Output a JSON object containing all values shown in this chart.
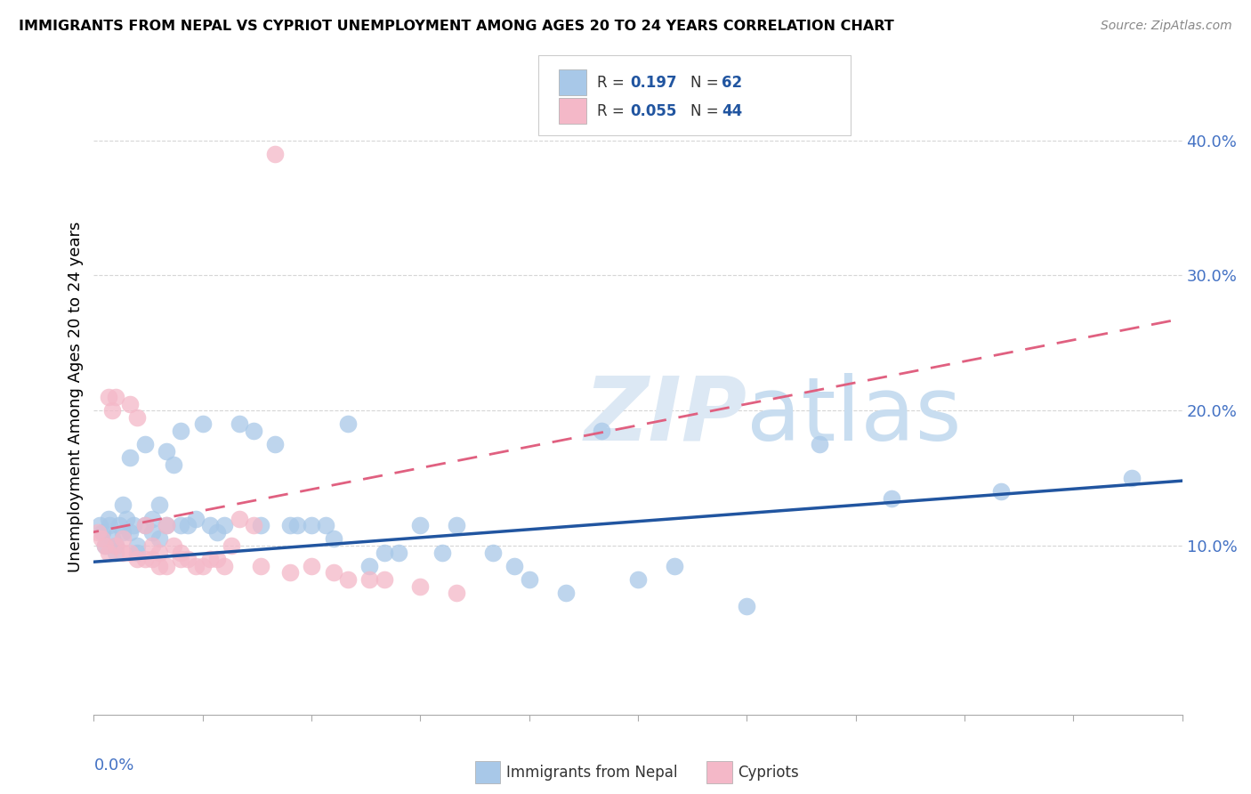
{
  "title": "IMMIGRANTS FROM NEPAL VS CYPRIOT UNEMPLOYMENT AMONG AGES 20 TO 24 YEARS CORRELATION CHART",
  "source": "Source: ZipAtlas.com",
  "ylabel": "Unemployment Among Ages 20 to 24 years",
  "color_blue": "#a8c8e8",
  "color_pink": "#f4b8c8",
  "color_blue_line": "#2155a0",
  "color_pink_line": "#e06080",
  "color_grid": "#cccccc",
  "xlim": [
    0.0,
    0.15
  ],
  "ylim": [
    -0.025,
    0.445
  ],
  "yticks": [
    0.1,
    0.2,
    0.3,
    0.4
  ],
  "ytick_labels": [
    "10.0%",
    "20.0%",
    "30.0%",
    "40.0%"
  ],
  "nepal_trend": [
    0.0,
    0.15,
    0.088,
    0.148
  ],
  "cypriot_trend": [
    -0.002,
    0.15,
    0.108,
    0.268
  ],
  "nepal_x": [
    0.0008,
    0.0012,
    0.0015,
    0.002,
    0.0022,
    0.0025,
    0.003,
    0.003,
    0.0035,
    0.004,
    0.004,
    0.0045,
    0.005,
    0.005,
    0.0055,
    0.006,
    0.006,
    0.007,
    0.007,
    0.008,
    0.008,
    0.009,
    0.009,
    0.01,
    0.01,
    0.011,
    0.012,
    0.012,
    0.013,
    0.014,
    0.015,
    0.016,
    0.017,
    0.018,
    0.02,
    0.022,
    0.023,
    0.025,
    0.027,
    0.028,
    0.03,
    0.032,
    0.033,
    0.035,
    0.038,
    0.04,
    0.042,
    0.045,
    0.048,
    0.05,
    0.055,
    0.058,
    0.06,
    0.065,
    0.07,
    0.075,
    0.08,
    0.09,
    0.1,
    0.11,
    0.125,
    0.143
  ],
  "nepal_y": [
    0.115,
    0.11,
    0.1,
    0.12,
    0.115,
    0.105,
    0.1,
    0.095,
    0.115,
    0.11,
    0.13,
    0.12,
    0.11,
    0.165,
    0.115,
    0.1,
    0.095,
    0.175,
    0.115,
    0.11,
    0.12,
    0.105,
    0.13,
    0.115,
    0.17,
    0.16,
    0.185,
    0.115,
    0.115,
    0.12,
    0.19,
    0.115,
    0.11,
    0.115,
    0.19,
    0.185,
    0.115,
    0.175,
    0.115,
    0.115,
    0.115,
    0.115,
    0.105,
    0.19,
    0.085,
    0.095,
    0.095,
    0.115,
    0.095,
    0.115,
    0.095,
    0.085,
    0.075,
    0.065,
    0.185,
    0.075,
    0.085,
    0.055,
    0.175,
    0.135,
    0.14,
    0.15
  ],
  "cypriot_x": [
    0.0005,
    0.001,
    0.0015,
    0.002,
    0.002,
    0.0025,
    0.003,
    0.003,
    0.004,
    0.004,
    0.005,
    0.005,
    0.006,
    0.006,
    0.007,
    0.007,
    0.008,
    0.008,
    0.009,
    0.009,
    0.01,
    0.01,
    0.011,
    0.012,
    0.012,
    0.013,
    0.014,
    0.015,
    0.016,
    0.017,
    0.018,
    0.019,
    0.02,
    0.022,
    0.023,
    0.025,
    0.027,
    0.03,
    0.033,
    0.035,
    0.038,
    0.04,
    0.045,
    0.05
  ],
  "cypriot_y": [
    0.11,
    0.105,
    0.1,
    0.21,
    0.095,
    0.2,
    0.21,
    0.1,
    0.105,
    0.095,
    0.205,
    0.095,
    0.195,
    0.09,
    0.115,
    0.09,
    0.1,
    0.09,
    0.095,
    0.085,
    0.115,
    0.085,
    0.1,
    0.095,
    0.09,
    0.09,
    0.085,
    0.085,
    0.09,
    0.09,
    0.085,
    0.1,
    0.12,
    0.115,
    0.085,
    0.39,
    0.08,
    0.085,
    0.08,
    0.075,
    0.075,
    0.075,
    0.07,
    0.065
  ]
}
